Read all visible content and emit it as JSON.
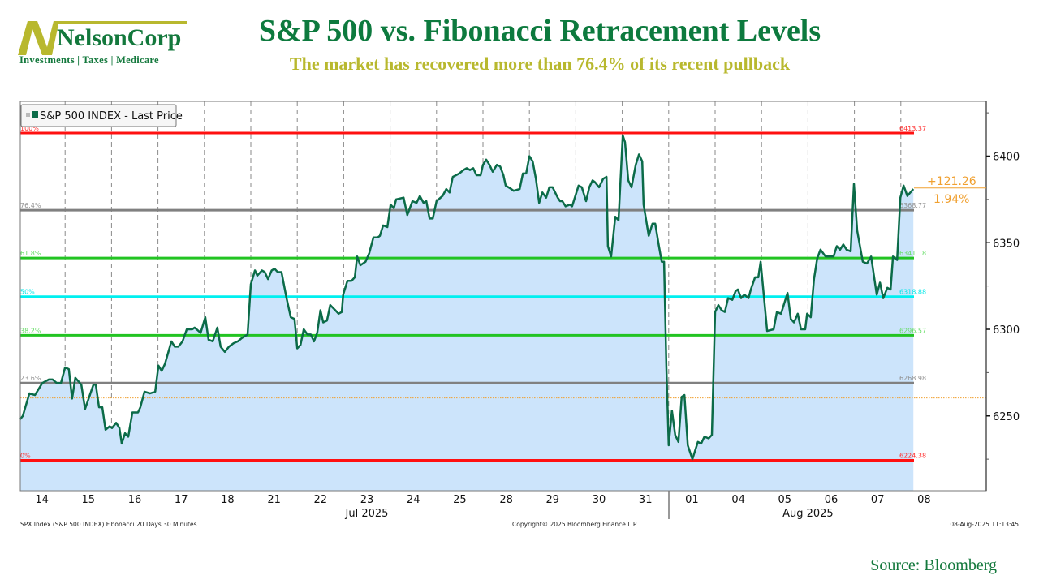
{
  "logo": {
    "name": "NelsonCorp",
    "tagline": "Investments | Taxes | Medicare"
  },
  "header": {
    "title": "S&P 500 vs. Fibonacci Retracement Levels",
    "subtitle": "The market has recovered more than 76.4% of its recent pullback"
  },
  "source": "Source: Bloomberg",
  "footer": {
    "left": "SPX Index (S&P 500 INDEX) Fibonacci 20 Days 30 Minutes",
    "center": "Copyright© 2025 Bloomberg Finance L.P.",
    "right": "08-Aug-2025 11:13:45"
  },
  "chart_data": {
    "type": "line",
    "legend": {
      "label": "S&P 500 INDEX - Last Price",
      "placement": "top-left"
    },
    "ylim": [
      6206.8,
      6431.6
    ],
    "yticks": [
      6250,
      6300,
      6350,
      6400
    ],
    "x_unit": "trading days from Jul 14 open",
    "day_labels": [
      "14",
      "15",
      "16",
      "17",
      "18",
      "21",
      "22",
      "23",
      "24",
      "25",
      "28",
      "29",
      "30",
      "31",
      "01",
      "04",
      "05",
      "06",
      "07",
      "08"
    ],
    "month_labels": [
      {
        "label": "Jul 2025",
        "center_day": 7.5
      },
      {
        "label": "Aug 2025",
        "center_day": 17
      }
    ],
    "last_price": 6381.64,
    "previous_close": 6260.38,
    "change": "+121.26",
    "change_pct": "1.94%",
    "fib_levels": [
      {
        "pct": "100%",
        "value": "6413.37",
        "color": "#ff1010",
        "text_color": "#ff3030"
      },
      {
        "pct": "76.4%",
        "value": "6368.77",
        "color": "#808080",
        "text_color": "#909090"
      },
      {
        "pct": "61.8%",
        "value": "6341.18",
        "color": "#22c422",
        "text_color": "#66dd66"
      },
      {
        "pct": "50%",
        "value": "6318.88",
        "color": "#00f0f0",
        "text_color": "#00e8e8"
      },
      {
        "pct": "38.2%",
        "value": "6296.57",
        "color": "#22c422",
        "text_color": "#66dd66"
      },
      {
        "pct": "23.6%",
        "value": "6268.98",
        "color": "#808080",
        "text_color": "#909090"
      },
      {
        "pct": "0%",
        "value": "6224.38",
        "color": "#ff1010",
        "text_color": "#ff3030"
      }
    ],
    "colors": {
      "line": "#0b6b48",
      "fill": "#cce4fb",
      "change": "#f0a030"
    },
    "series": [
      [
        0.03,
        6248
      ],
      [
        0.09,
        6250
      ],
      [
        0.23,
        6263
      ],
      [
        0.35,
        6262
      ],
      [
        0.51,
        6269
      ],
      [
        0.65,
        6271
      ],
      [
        0.73,
        6271
      ],
      [
        0.82,
        6269
      ],
      [
        0.91,
        6269
      ],
      [
        1.0,
        6278
      ],
      [
        1.08,
        6277
      ],
      [
        1.15,
        6260
      ],
      [
        1.22,
        6272
      ],
      [
        1.35,
        6268
      ],
      [
        1.43,
        6254
      ],
      [
        1.61,
        6268
      ],
      [
        1.66,
        6268
      ],
      [
        1.73,
        6255
      ],
      [
        1.8,
        6255
      ],
      [
        1.87,
        6242
      ],
      [
        1.96,
        6244
      ],
      [
        2.01,
        6243
      ],
      [
        2.1,
        6246
      ],
      [
        2.17,
        6243
      ],
      [
        2.22,
        6234
      ],
      [
        2.29,
        6240
      ],
      [
        2.36,
        6238
      ],
      [
        2.45,
        6252
      ],
      [
        2.57,
        6252
      ],
      [
        2.62,
        6255
      ],
      [
        2.71,
        6264
      ],
      [
        2.83,
        6263
      ],
      [
        2.94,
        6264
      ],
      [
        3.01,
        6279
      ],
      [
        3.08,
        6276
      ],
      [
        3.15,
        6280
      ],
      [
        3.29,
        6293
      ],
      [
        3.36,
        6290
      ],
      [
        3.44,
        6290
      ],
      [
        3.53,
        6293
      ],
      [
        3.62,
        6300
      ],
      [
        3.74,
        6300
      ],
      [
        3.79,
        6301
      ],
      [
        3.92,
        6298
      ],
      [
        4.02,
        6307
      ],
      [
        4.09,
        6294
      ],
      [
        4.18,
        6293
      ],
      [
        4.28,
        6301
      ],
      [
        4.35,
        6290
      ],
      [
        4.44,
        6287
      ],
      [
        4.53,
        6290
      ],
      [
        4.63,
        6292
      ],
      [
        4.72,
        6293
      ],
      [
        4.81,
        6295
      ],
      [
        4.93,
        6297
      ],
      [
        5.0,
        6326
      ],
      [
        5.09,
        6334
      ],
      [
        5.14,
        6331
      ],
      [
        5.24,
        6334
      ],
      [
        5.3,
        6333
      ],
      [
        5.37,
        6329
      ],
      [
        5.45,
        6334
      ],
      [
        5.51,
        6335
      ],
      [
        5.58,
        6333
      ],
      [
        5.66,
        6333
      ],
      [
        5.77,
        6318
      ],
      [
        5.86,
        6307
      ],
      [
        5.94,
        6306
      ],
      [
        6.0,
        6289
      ],
      [
        6.07,
        6291
      ],
      [
        6.14,
        6300
      ],
      [
        6.22,
        6297
      ],
      [
        6.29,
        6297
      ],
      [
        6.36,
        6293
      ],
      [
        6.43,
        6298
      ],
      [
        6.5,
        6311
      ],
      [
        6.56,
        6304
      ],
      [
        6.64,
        6305
      ],
      [
        6.71,
        6314
      ],
      [
        6.82,
        6311
      ],
      [
        6.89,
        6309
      ],
      [
        6.96,
        6310
      ],
      [
        6.99,
        6320
      ],
      [
        7.08,
        6328
      ],
      [
        7.17,
        6328
      ],
      [
        7.24,
        6330
      ],
      [
        7.29,
        6342
      ],
      [
        7.36,
        6337
      ],
      [
        7.47,
        6339
      ],
      [
        7.55,
        6344
      ],
      [
        7.64,
        6353
      ],
      [
        7.73,
        6353
      ],
      [
        7.78,
        6354
      ],
      [
        7.85,
        6360
      ],
      [
        7.94,
        6359
      ],
      [
        8.01,
        6372
      ],
      [
        8.08,
        6370
      ],
      [
        8.13,
        6375
      ],
      [
        8.29,
        6376
      ],
      [
        8.37,
        6366
      ],
      [
        8.48,
        6374
      ],
      [
        8.57,
        6373
      ],
      [
        8.64,
        6377
      ],
      [
        8.72,
        6373
      ],
      [
        8.78,
        6374
      ],
      [
        8.85,
        6364
      ],
      [
        8.92,
        6364
      ],
      [
        9.0,
        6374
      ],
      [
        9.13,
        6377
      ],
      [
        9.21,
        6381
      ],
      [
        9.28,
        6379
      ],
      [
        9.35,
        6388
      ],
      [
        9.42,
        6389
      ],
      [
        9.49,
        6390
      ],
      [
        9.58,
        6392
      ],
      [
        9.65,
        6393
      ],
      [
        9.72,
        6392
      ],
      [
        9.79,
        6393
      ],
      [
        9.86,
        6389
      ],
      [
        9.95,
        6389
      ],
      [
        10.0,
        6395
      ],
      [
        10.07,
        6398
      ],
      [
        10.14,
        6395
      ],
      [
        10.21,
        6391
      ],
      [
        10.3,
        6395
      ],
      [
        10.37,
        6394
      ],
      [
        10.44,
        6389
      ],
      [
        10.49,
        6383
      ],
      [
        10.61,
        6381
      ],
      [
        10.66,
        6380
      ],
      [
        10.79,
        6381
      ],
      [
        10.86,
        6390
      ],
      [
        10.93,
        6390
      ],
      [
        11.0,
        6400
      ],
      [
        11.07,
        6397
      ],
      [
        11.14,
        6387
      ],
      [
        11.21,
        6373
      ],
      [
        11.28,
        6379
      ],
      [
        11.36,
        6376
      ],
      [
        11.43,
        6382
      ],
      [
        11.5,
        6382
      ],
      [
        11.61,
        6376
      ],
      [
        11.66,
        6374
      ],
      [
        11.71,
        6374
      ],
      [
        11.78,
        6371
      ],
      [
        11.87,
        6372
      ],
      [
        11.92,
        6371
      ],
      [
        12.06,
        6383
      ],
      [
        12.13,
        6382
      ],
      [
        12.22,
        6374
      ],
      [
        12.29,
        6382
      ],
      [
        12.36,
        6386
      ],
      [
        12.41,
        6385
      ],
      [
        12.5,
        6382
      ],
      [
        12.59,
        6387
      ],
      [
        12.66,
        6388
      ],
      [
        12.69,
        6348
      ],
      [
        12.76,
        6342
      ],
      [
        12.85,
        6365
      ],
      [
        12.92,
        6363
      ],
      [
        13.01,
        6412
      ],
      [
        13.06,
        6408
      ],
      [
        13.13,
        6386
      ],
      [
        13.2,
        6382
      ],
      [
        13.29,
        6395
      ],
      [
        13.36,
        6401
      ],
      [
        13.43,
        6397
      ],
      [
        13.46,
        6372
      ],
      [
        13.57,
        6354
      ],
      [
        13.65,
        6361
      ],
      [
        13.71,
        6361
      ],
      [
        13.79,
        6348
      ],
      [
        13.85,
        6339
      ],
      [
        13.9,
        6339
      ],
      [
        13.95,
        6279
      ],
      [
        14.0,
        6233
      ],
      [
        14.07,
        6253
      ],
      [
        14.14,
        6239
      ],
      [
        14.21,
        6235
      ],
      [
        14.28,
        6261
      ],
      [
        14.34,
        6262
      ],
      [
        14.41,
        6233
      ],
      [
        14.51,
        6225
      ],
      [
        14.63,
        6235
      ],
      [
        14.7,
        6234
      ],
      [
        14.77,
        6238
      ],
      [
        14.86,
        6237
      ],
      [
        14.93,
        6239
      ],
      [
        15.0,
        6310
      ],
      [
        15.07,
        6314
      ],
      [
        15.14,
        6311
      ],
      [
        15.21,
        6310
      ],
      [
        15.28,
        6318
      ],
      [
        15.37,
        6317
      ],
      [
        15.44,
        6322
      ],
      [
        15.49,
        6323
      ],
      [
        15.56,
        6318
      ],
      [
        15.63,
        6320
      ],
      [
        15.72,
        6318
      ],
      [
        15.77,
        6323
      ],
      [
        15.86,
        6330
      ],
      [
        15.93,
        6330
      ],
      [
        15.98,
        6339
      ],
      [
        16.12,
        6299
      ],
      [
        16.26,
        6300
      ],
      [
        16.33,
        6310
      ],
      [
        16.42,
        6309
      ],
      [
        16.56,
        6321
      ],
      [
        16.63,
        6306
      ],
      [
        16.7,
        6304
      ],
      [
        16.78,
        6309
      ],
      [
        16.85,
        6300
      ],
      [
        16.94,
        6300
      ],
      [
        16.98,
        6309
      ],
      [
        17.06,
        6307
      ],
      [
        17.13,
        6329
      ],
      [
        17.2,
        6341
      ],
      [
        17.27,
        6346
      ],
      [
        17.38,
        6342
      ],
      [
        17.48,
        6342
      ],
      [
        17.55,
        6342
      ],
      [
        17.62,
        6348
      ],
      [
        17.69,
        6346
      ],
      [
        17.76,
        6349
      ],
      [
        17.83,
        6346
      ],
      [
        17.92,
        6345
      ],
      [
        17.99,
        6384
      ],
      [
        18.06,
        6357
      ],
      [
        18.18,
        6339
      ],
      [
        18.27,
        6338
      ],
      [
        18.36,
        6342
      ],
      [
        18.48,
        6320
      ],
      [
        18.55,
        6327
      ],
      [
        18.62,
        6318
      ],
      [
        18.71,
        6324
      ],
      [
        18.78,
        6323
      ],
      [
        18.83,
        6342
      ],
      [
        18.92,
        6340
      ],
      [
        18.99,
        6376
      ],
      [
        19.06,
        6383
      ],
      [
        19.14,
        6377
      ],
      [
        19.27,
        6381
      ]
    ]
  }
}
